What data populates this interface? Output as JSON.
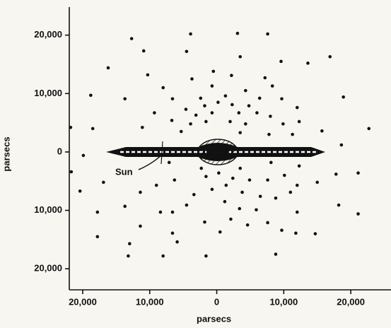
{
  "chart_data": {
    "type": "scatter",
    "xlabel": "parsecs",
    "ylabel": "parsecs",
    "annotation": "Sun",
    "color": "#111111",
    "xlim": [
      -22000,
      26000
    ],
    "ylim": [
      -23600,
      24800
    ],
    "xticks": [
      {
        "value": -20000,
        "label": "20,000"
      },
      {
        "value": -10000,
        "label": "10,000"
      },
      0,
      {
        "value": 10000,
        "label": "10,000"
      },
      {
        "value": 20000,
        "label": "20,000"
      }
    ],
    "yticks": [
      {
        "value": -20000,
        "label": "20,000"
      },
      {
        "value": -10000,
        "label": "10,000"
      },
      0,
      {
        "value": 10000,
        "label": "10,000"
      },
      {
        "value": 20000,
        "label": "20,000"
      }
    ],
    "x": [
      -12700,
      -3900,
      3100,
      7600,
      -10900,
      -4500,
      3500,
      9600,
      13600,
      16900,
      -16200,
      -10300,
      -500,
      2200,
      7200,
      -18800,
      -13700,
      -8000,
      -3700,
      -700,
      4300,
      8300,
      18900,
      -6600,
      -2400,
      1300,
      6400,
      12000,
      -9300,
      -1800,
      200,
      2300,
      4800,
      9700,
      -4600,
      -3100,
      -700,
      3300,
      6000,
      8000,
      -6700,
      -3900,
      -1600,
      2000,
      4300,
      9900,
      12300,
      -11100,
      -5300,
      3500,
      7800,
      11300,
      15700,
      -21800,
      -18500,
      -19900,
      -21700,
      -20400,
      -16900,
      18600,
      22700,
      17800,
      21100,
      -7100,
      -2300,
      3500,
      8100,
      12300,
      -11400,
      -9000,
      -6300,
      -1600,
      300,
      2400,
      4900,
      7600,
      10100,
      12000,
      15000,
      -3400,
      -700,
      1400,
      3800,
      6500,
      8800,
      11000,
      -13700,
      -8400,
      -4500,
      1200,
      3400,
      5900,
      12000,
      18200,
      -6600,
      -1800,
      2100,
      4600,
      7600,
      -17800,
      -11400,
      -6600,
      500,
      9700,
      21100,
      -17800,
      -13000,
      11800,
      -13200,
      -5900,
      -1600,
      8800,
      14700,
      -8000
    ],
    "y": [
      19400,
      20200,
      20300,
      20200,
      17300,
      17200,
      16300,
      15500,
      15200,
      16300,
      14400,
      13200,
      13800,
      13100,
      12700,
      9700,
      9100,
      11000,
      12500,
      11300,
      10500,
      11300,
      9400,
      9100,
      9200,
      9600,
      9200,
      7600,
      6700,
      7900,
      8500,
      8100,
      7900,
      9100,
      7300,
      6300,
      6700,
      6700,
      6700,
      6100,
      5400,
      4800,
      5200,
      5200,
      4800,
      4800,
      5200,
      4200,
      3500,
      3300,
      3000,
      3000,
      3600,
      4200,
      4000,
      -600,
      -3400,
      -6700,
      -5200,
      1200,
      4000,
      -3800,
      -3600,
      -1800,
      -2800,
      -2800,
      -1800,
      -2400,
      -6900,
      -5700,
      -4800,
      -4200,
      -3600,
      -4500,
      -4800,
      -4800,
      -4000,
      -5700,
      -5200,
      -7300,
      -6400,
      -5700,
      -6900,
      -7600,
      -7900,
      -6900,
      -9300,
      -10300,
      -9100,
      -8500,
      -9700,
      -9900,
      -10300,
      -9100,
      -10300,
      -12000,
      -11500,
      -12500,
      -12100,
      -10300,
      -12700,
      -13900,
      -13700,
      -13400,
      -10600,
      -14500,
      -15700,
      -13900,
      -17800,
      -15400,
      -17800,
      -17500,
      -14000,
      -17800
    ]
  }
}
